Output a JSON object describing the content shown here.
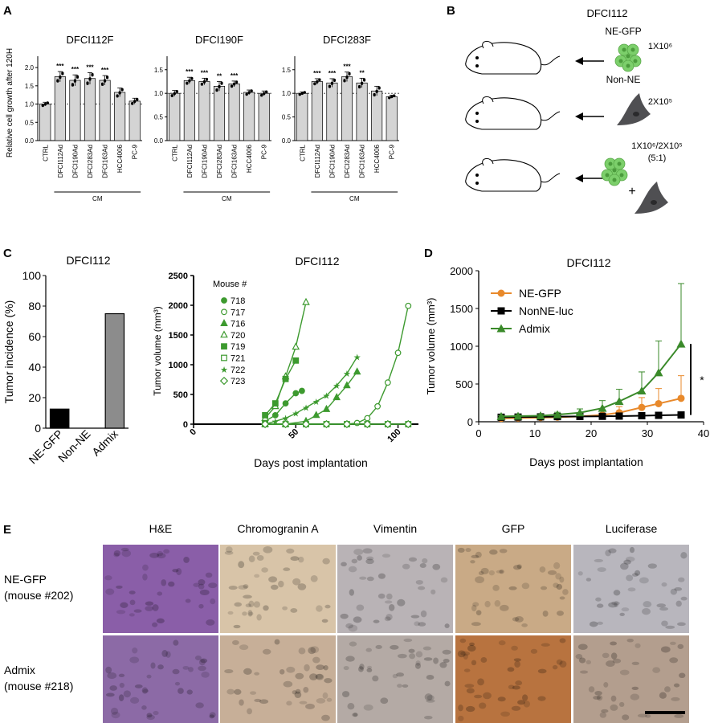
{
  "panels": {
    "A": {
      "label": "A",
      "ylabel": "Relative cell growth after 120H",
      "group_label": "CM",
      "yticks": [
        "0.0",
        "0.5",
        "1.0",
        "1.5",
        "2.0"
      ],
      "categories": [
        "CTRL",
        "DFCI112Ad",
        "DFCI190Ad",
        "DFCI283Ad",
        "DFCI163Ad",
        "HCC4006",
        "PC-9"
      ]
    },
    "B": {
      "label": "B",
      "title": "DFCI112",
      "cell1": "NE-GFP",
      "dose1": "1X10⁶",
      "cell2": "Non-NE",
      "dose2": "2X10⁵",
      "dose3": "1X10⁶/2X10⁵",
      "ratio3": "(5:1)",
      "plus": "+"
    },
    "C": {
      "label": "C"
    },
    "D": {
      "label": "D"
    },
    "E": {
      "label": "E",
      "columns": [
        "H&E",
        "Chromogranin A",
        "Vimentin",
        "GFP",
        "Luciferase"
      ],
      "rows": [
        {
          "line1": "NE-GFP",
          "line2": "(mouse #202)"
        },
        {
          "line1": "Admix",
          "line2": "(mouse #218)"
        }
      ],
      "tile_colors": [
        [
          "#8a5ea8",
          "#d8c4a8",
          "#b9b3b6",
          "#c9aa86",
          "#b8b6bd"
        ],
        [
          "#8c6aa6",
          "#c7af98",
          "#b4aaa5",
          "#b8733f",
          "#b39e8e"
        ]
      ]
    }
  },
  "chart_data": [
    {
      "type": "bar",
      "title": "DFCI112F",
      "categories": [
        "CTRL",
        "DFCI112Ad",
        "DFCI190Ad",
        "DFCI283Ad",
        "DFCI163Ad",
        "HCC4006",
        "PC-9"
      ],
      "values": [
        1.0,
        1.75,
        1.65,
        1.7,
        1.65,
        1.32,
        1.08
      ],
      "errors": [
        0.05,
        0.14,
        0.15,
        0.16,
        0.13,
        0.12,
        0.08
      ],
      "significance": [
        "",
        "***",
        "***",
        "***",
        "***",
        "",
        ""
      ],
      "ylim": [
        0,
        2.2
      ],
      "yticks": [
        0,
        0.5,
        1.0,
        1.5,
        2.0
      ],
      "reference_line": 1.0
    },
    {
      "type": "bar",
      "title": "DFCI190F",
      "categories": [
        "CTRL",
        "DFCI112Ad",
        "DFCI190Ad",
        "DFCI283Ad",
        "DFCI163Ad",
        "HCC4006",
        "PC-9"
      ],
      "values": [
        1.0,
        1.27,
        1.25,
        1.15,
        1.2,
        1.02,
        1.0
      ],
      "errors": [
        0.06,
        0.07,
        0.07,
        0.1,
        0.06,
        0.05,
        0.05
      ],
      "significance": [
        "",
        "***",
        "***",
        "**",
        "***",
        "",
        ""
      ],
      "ylim": [
        0,
        1.7
      ],
      "yticks": [
        0,
        0.5,
        1.0,
        1.5
      ],
      "reference_line": 1.0
    },
    {
      "type": "bar",
      "title": "DFCI283F",
      "categories": [
        "CTRL",
        "DFCI112Ad",
        "DFCI190Ad",
        "DFCI283Ad",
        "DFCI163Ad",
        "HCC4006",
        "PC-9"
      ],
      "values": [
        1.0,
        1.25,
        1.22,
        1.35,
        1.22,
        1.05,
        0.93
      ],
      "errors": [
        0.03,
        0.06,
        0.09,
        0.1,
        0.1,
        0.1,
        0.03
      ],
      "significance": [
        "",
        "***",
        "***",
        "***",
        "**",
        "",
        ""
      ],
      "ylim": [
        0,
        1.7
      ],
      "yticks": [
        0,
        0.5,
        1.0,
        1.5
      ],
      "reference_line": 1.0
    },
    {
      "type": "bar",
      "title": "DFCI112",
      "categories": [
        "NE-GFP",
        "Non-NE",
        "Admix"
      ],
      "values": [
        12.5,
        0,
        75
      ],
      "colors": [
        "#000000",
        "#ffffff",
        "#8c8c8c"
      ],
      "ylabel": "Tumor incidence (%)",
      "ylim": [
        0,
        100
      ],
      "yticks": [
        0,
        20,
        40,
        60,
        80,
        100
      ]
    },
    {
      "type": "line",
      "title": "DFCI112",
      "xlabel": "Days post implantation",
      "ylabel": "Tumor volume (mm³)",
      "legend_title": "Mouse #",
      "legend_position": "top-left",
      "xlim": [
        0,
        110
      ],
      "ylim": [
        0,
        2500
      ],
      "xticks": [
        0,
        50,
        100
      ],
      "yticks": [
        0,
        500,
        1000,
        1500,
        2000,
        2500
      ],
      "series": [
        {
          "name": "718",
          "marker": "circle-filled",
          "points": [
            [
              35,
              50
            ],
            [
              40,
              150
            ],
            [
              45,
              350
            ],
            [
              50,
              520
            ],
            [
              53,
              560
            ]
          ]
        },
        {
          "name": "717",
          "marker": "circle-open",
          "points": [
            [
              35,
              0
            ],
            [
              45,
              0
            ],
            [
              55,
              0
            ],
            [
              65,
              0
            ],
            [
              75,
              0
            ],
            [
              80,
              20
            ],
            [
              85,
              100
            ],
            [
              90,
              300
            ],
            [
              95,
              700
            ],
            [
              100,
              1200
            ],
            [
              105,
              1990
            ]
          ]
        },
        {
          "name": "716",
          "marker": "triangle-filled",
          "points": [
            [
              35,
              0
            ],
            [
              45,
              0
            ],
            [
              55,
              50
            ],
            [
              60,
              150
            ],
            [
              65,
              250
            ],
            [
              70,
              450
            ],
            [
              75,
              650
            ],
            [
              80,
              880
            ]
          ]
        },
        {
          "name": "720",
          "marker": "triangle-open",
          "points": [
            [
              35,
              100
            ],
            [
              40,
              300
            ],
            [
              45,
              800
            ],
            [
              50,
              1300
            ],
            [
              55,
              2050
            ]
          ]
        },
        {
          "name": "719",
          "marker": "square-filled",
          "points": [
            [
              35,
              150
            ],
            [
              40,
              350
            ],
            [
              45,
              760
            ],
            [
              50,
              1070
            ]
          ]
        },
        {
          "name": "721",
          "marker": "square-open",
          "points": [
            [
              35,
              0
            ],
            [
              45,
              0
            ],
            [
              55,
              0
            ],
            [
              65,
              0
            ],
            [
              75,
              0
            ],
            [
              85,
              0
            ],
            [
              95,
              0
            ],
            [
              105,
              0
            ]
          ]
        },
        {
          "name": "722",
          "marker": "star",
          "points": [
            [
              35,
              0
            ],
            [
              40,
              50
            ],
            [
              45,
              100
            ],
            [
              50,
              180
            ],
            [
              55,
              280
            ],
            [
              60,
              380
            ],
            [
              65,
              480
            ],
            [
              70,
              650
            ],
            [
              75,
              850
            ],
            [
              80,
              1130
            ]
          ]
        },
        {
          "name": "723",
          "marker": "diamond-open",
          "points": [
            [
              35,
              0
            ],
            [
              45,
              0
            ],
            [
              55,
              0
            ],
            [
              65,
              0
            ],
            [
              75,
              0
            ],
            [
              85,
              0
            ],
            [
              95,
              0
            ],
            [
              105,
              0
            ]
          ]
        }
      ]
    },
    {
      "type": "line",
      "title": "DFCI112",
      "xlabel": "Days post implantation",
      "ylabel": "Tumor volume (mm³)",
      "legend_position": "top-left",
      "xlim": [
        0,
        40
      ],
      "ylim": [
        0,
        2000
      ],
      "xticks": [
        0,
        10,
        20,
        30,
        40
      ],
      "yticks": [
        0,
        500,
        1000,
        1500,
        2000
      ],
      "significance": "*",
      "series": [
        {
          "name": "NE-GFP",
          "color": "#e8892b",
          "marker": "circle",
          "x": [
            4,
            7,
            11,
            14,
            18,
            22,
            25,
            29,
            32,
            36
          ],
          "y": [
            45,
            50,
            55,
            60,
            70,
            90,
            120,
            190,
            240,
            310
          ],
          "err": [
            10,
            15,
            15,
            20,
            30,
            50,
            80,
            130,
            200,
            300
          ]
        },
        {
          "name": "NonNE-luc",
          "color": "#000000",
          "marker": "square",
          "x": [
            4,
            7,
            11,
            14,
            18,
            22,
            25,
            29,
            32,
            36
          ],
          "y": [
            60,
            62,
            65,
            68,
            70,
            72,
            75,
            80,
            85,
            90
          ],
          "err": [
            5,
            5,
            5,
            5,
            5,
            5,
            5,
            5,
            5,
            5
          ]
        },
        {
          "name": "Admix",
          "color": "#3a8a2a",
          "marker": "triangle",
          "x": [
            4,
            7,
            11,
            14,
            18,
            22,
            25,
            29,
            32,
            36
          ],
          "y": [
            70,
            75,
            80,
            95,
            120,
            180,
            270,
            410,
            650,
            1030
          ],
          "err": [
            10,
            15,
            20,
            30,
            50,
            100,
            160,
            250,
            420,
            800
          ]
        }
      ]
    }
  ]
}
